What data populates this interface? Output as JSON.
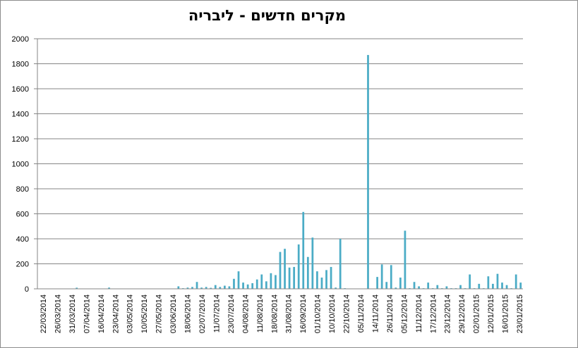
{
  "chart_data": {
    "type": "bar",
    "title": "מקרים חדשים - ליבריה",
    "xlabel": "",
    "ylabel": "",
    "ylim": [
      0,
      2000
    ],
    "yticks": [
      0,
      200,
      400,
      600,
      800,
      1000,
      1200,
      1400,
      1600,
      1800,
      2000
    ],
    "grid": true,
    "legend": "none",
    "bar_color": "#4BACC6",
    "tick_labels": [
      "22/03/2014",
      "26/03/2014",
      "31/03/2014",
      "07/04/2014",
      "16/04/2014",
      "23/04/2014",
      "03/05/2014",
      "10/05/2014",
      "27/05/2014",
      "03/06/2014",
      "18/06/2014",
      "02/07/2014",
      "11/07/2014",
      "23/07/2014",
      "04/08/2014",
      "11/08/2014",
      "18/08/2014",
      "31/08/2014",
      "16/09/2014",
      "01/10/2014",
      "10/10/2014",
      "22/10/2014",
      "05/11/2014",
      "14/11/2014",
      "26/11/2014",
      "05/12/2014",
      "11/12/2014",
      "17/12/2014",
      "23/12/2014",
      "29/12/2014",
      "02/01/2015",
      "12/01/2015",
      "16/01/2015",
      "23/01/2015"
    ],
    "values": [
      2,
      1,
      1,
      1,
      2,
      1,
      1,
      1,
      9,
      1,
      1,
      1,
      1,
      1,
      2,
      10,
      1,
      1,
      1,
      1,
      1,
      1,
      1,
      1,
      1,
      1,
      1,
      1,
      1,
      2,
      20,
      5,
      10,
      15,
      55,
      10,
      15,
      8,
      30,
      15,
      25,
      20,
      80,
      140,
      50,
      35,
      45,
      75,
      115,
      60,
      125,
      110,
      295,
      320,
      170,
      175,
      355,
      615,
      255,
      410,
      140,
      90,
      150,
      175,
      10,
      400,
      5,
      1,
      1,
      1,
      0,
      1870,
      1,
      95,
      195,
      55,
      190,
      10,
      90,
      465,
      5,
      55,
      20,
      5,
      50,
      5,
      30,
      5,
      20,
      5,
      5,
      30,
      5,
      115,
      5,
      40,
      5,
      100,
      40,
      120,
      50,
      30,
      5,
      115,
      50
    ]
  }
}
